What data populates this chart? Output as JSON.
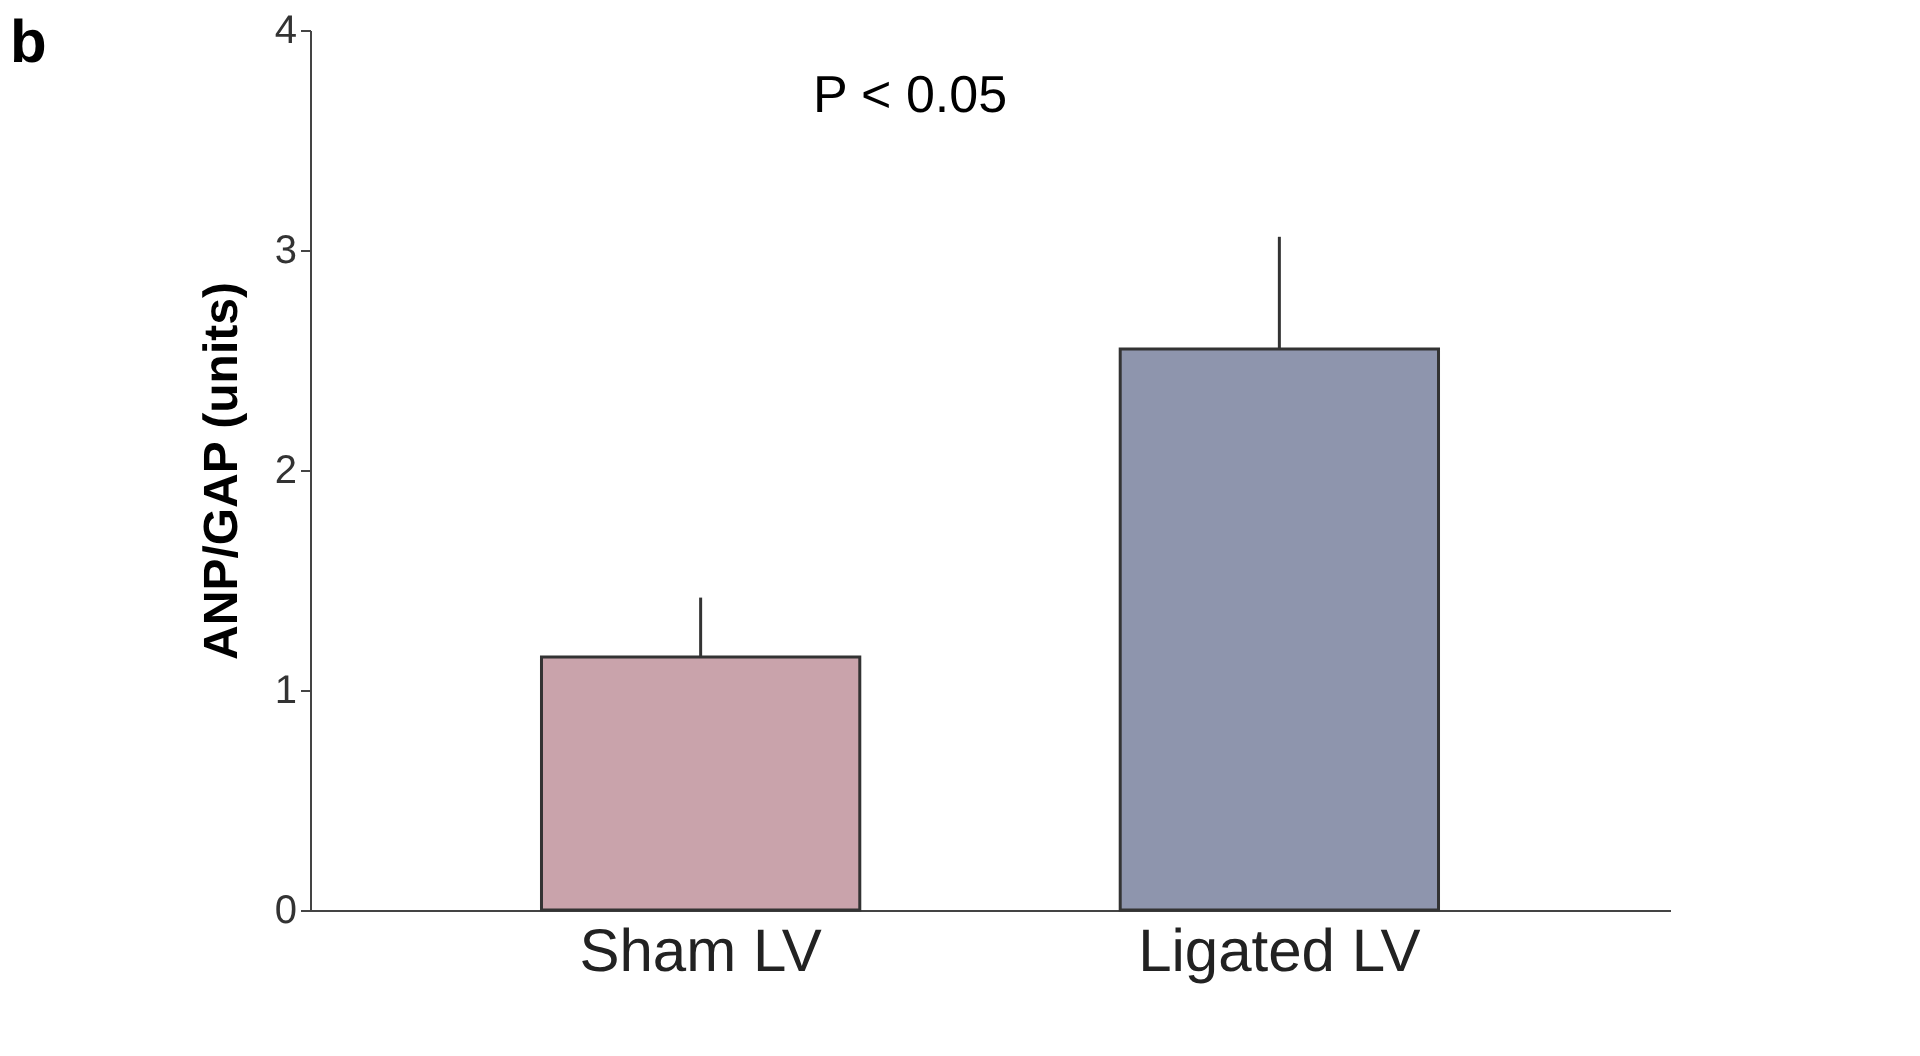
{
  "chart_data": {
    "type": "bar",
    "categories": [
      "Sham LV",
      "Ligated LV"
    ],
    "values": [
      1.15,
      2.55
    ],
    "colors": [
      "#c9a3ab",
      "#8e95ad"
    ],
    "errors": [
      [
        1.15,
        1.42
      ],
      [
        2.55,
        3.06
      ]
    ],
    "ylabel": "ANP/GAP (units)",
    "ylim": [
      0,
      4
    ],
    "yticks": [
      0,
      1,
      2,
      3,
      4
    ],
    "grid": false,
    "annotations": [
      "b",
      "P < 0.05"
    ]
  }
}
